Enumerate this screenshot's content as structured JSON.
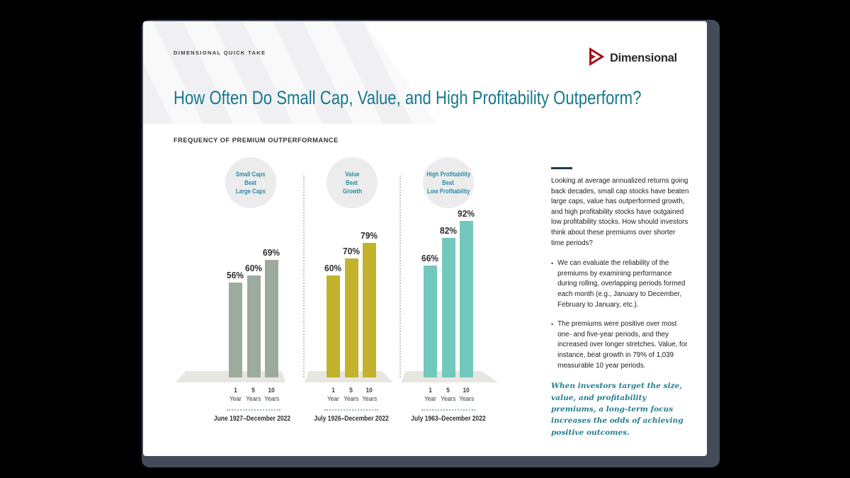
{
  "header": {
    "eyebrow": "DIMENSIONAL QUICK TAKE",
    "brand": "Dimensional",
    "title": "How Often Do Small Cap, Value, and High Profitability Outperform?"
  },
  "section_label": "FREQUENCY OF PREMIUM OUTPERFORMANCE",
  "chart_data": {
    "type": "bar",
    "title": "Frequency of Premium Outperformance",
    "unit": "%",
    "ylim": [
      0,
      100
    ],
    "categories": [
      "1 Year",
      "5 Years",
      "10 Years"
    ],
    "groups": [
      {
        "name": [
          "Small Caps",
          "Beat",
          "Large Caps"
        ],
        "period": "June 1927–December 2022",
        "values": [
          56,
          60,
          69
        ],
        "labels": [
          "56%",
          "60%",
          "69%"
        ],
        "ticks": [
          [
            "1",
            "Year"
          ],
          [
            "5",
            "Years"
          ],
          [
            "10",
            "Years"
          ]
        ],
        "color": "#9DAB9C"
      },
      {
        "name": [
          "Value",
          "Beat",
          "Growth"
        ],
        "period": "July 1926–December 2022",
        "values": [
          60,
          70,
          79
        ],
        "labels": [
          "60%",
          "70%",
          "79%"
        ],
        "ticks": [
          [
            "1",
            "Year"
          ],
          [
            "5",
            "Years"
          ],
          [
            "10",
            "Years"
          ]
        ],
        "color": "#C3B22C"
      },
      {
        "name": [
          "High Profitability",
          "Beat",
          "Low Profitability"
        ],
        "period": "July 1963–December 2022",
        "values": [
          66,
          82,
          92
        ],
        "labels": [
          "66%",
          "82%",
          "92%"
        ],
        "ticks": [
          [
            "1",
            "Year"
          ],
          [
            "5",
            "Years"
          ],
          [
            "10",
            "Years"
          ]
        ],
        "color": "#73C8BD"
      }
    ]
  },
  "sidebar": {
    "intro": "Looking at average annualized returns going back decades, small cap stocks have beaten large caps, value has outperformed growth, and high profitability stocks have outgained low profitability stocks. How should investors think about these premiums over shorter time periods?",
    "bullets": [
      "We can evaluate the reliability of the premiums by examining performance during rolling, overlapping periods formed each month (e.g., January to December, February to January, etc.).",
      "The premiums were positive over most one- and five-year periods, and they increased over longer stretches. Value, for instance, beat growth in 79% of 1,039 measurable 10 year periods."
    ],
    "quote": "When investors target the size, value, and profitability premiums, a long-term focus increases the odds of achieving positive outcomes."
  },
  "colors": {
    "title_teal": "#17798B",
    "circle_text_teal": "#2E8CA0",
    "quote_teal": "#26808F",
    "rule_navy": "#1E3A56",
    "frame_slate": "#444C5A",
    "platform_gray": "#E8E6E1",
    "bar_shadow_gray": "#DBD8D2",
    "logo_red": "#A6131C"
  }
}
